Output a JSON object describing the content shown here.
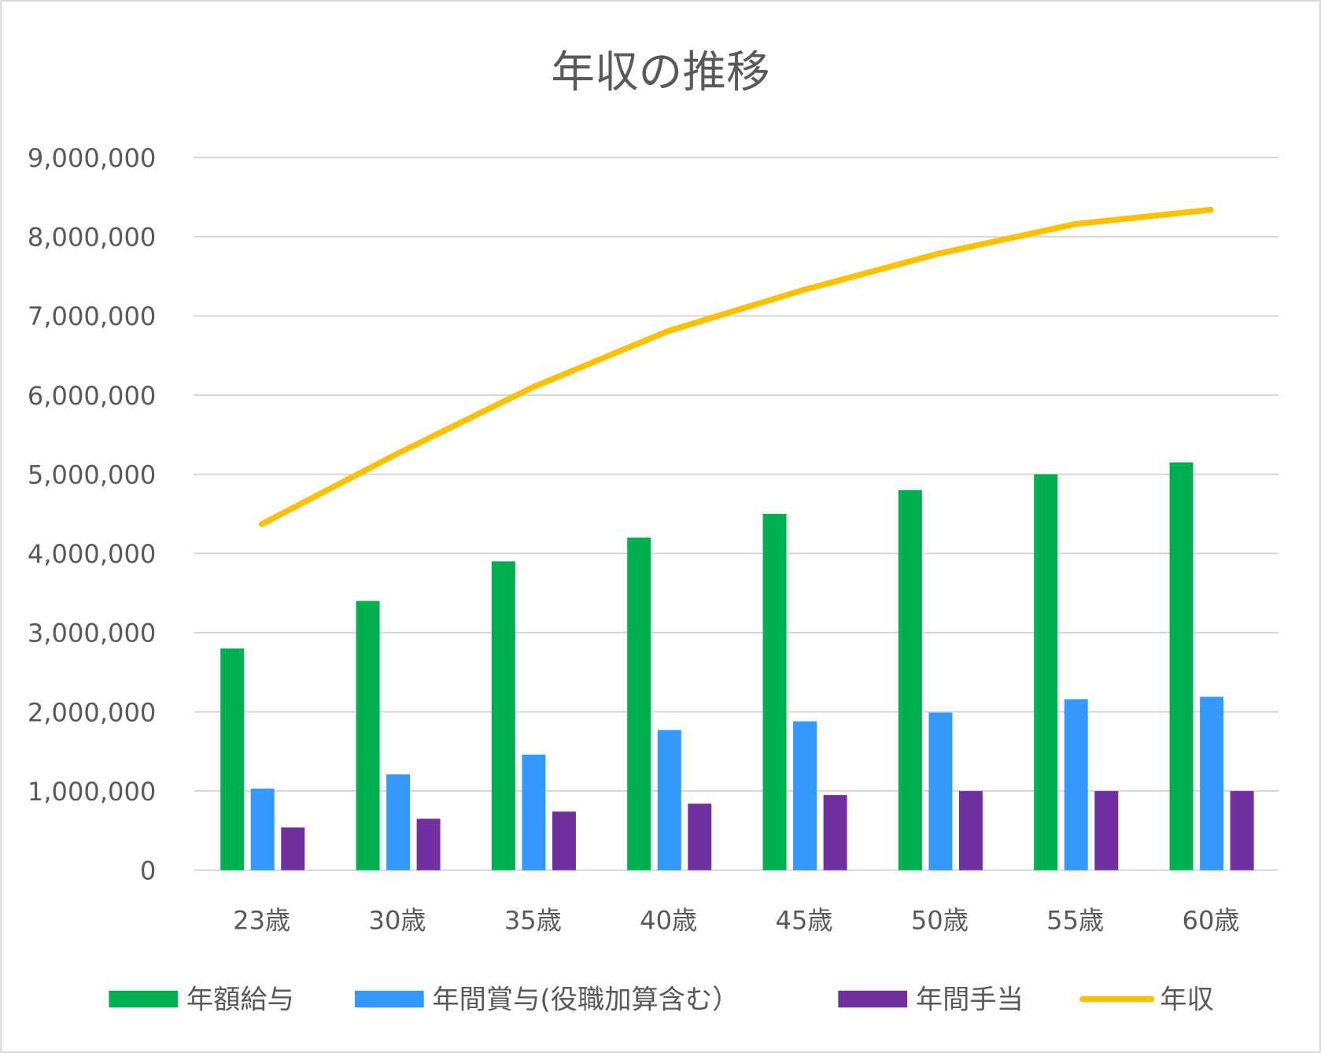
{
  "chart_data": {
    "type": "bar+line",
    "title": "年収の推移",
    "xlabel": "",
    "ylabel": "",
    "ylim": [
      0,
      9000000
    ],
    "yticks": [
      "0",
      "1,000,000",
      "2,000,000",
      "3,000,000",
      "4,000,000",
      "5,000,000",
      "6,000,000",
      "7,000,000",
      "8,000,000",
      "9,000,000"
    ],
    "ytick_values": [
      0,
      1000000,
      2000000,
      3000000,
      4000000,
      5000000,
      6000000,
      7000000,
      8000000,
      9000000
    ],
    "grid": true,
    "legend_position": "bottom",
    "categories": [
      "23歳",
      "30歳",
      "35歳",
      "40歳",
      "45歳",
      "50歳",
      "55歳",
      "60歳"
    ],
    "series": [
      {
        "name": "年額給与",
        "type": "bar",
        "color": "#00B050",
        "values": [
          2800000,
          3400000,
          3900000,
          4200000,
          4500000,
          4800000,
          5000000,
          5150000
        ]
      },
      {
        "name": "年間賞与(役職加算含む）",
        "type": "bar",
        "color": "#3399FF",
        "values": [
          1030000,
          1210000,
          1460000,
          1770000,
          1880000,
          1990000,
          2160000,
          2190000
        ]
      },
      {
        "name": "年間手当",
        "type": "bar",
        "color": "#7030A0",
        "values": [
          540000,
          650000,
          740000,
          840000,
          950000,
          1000000,
          1000000,
          1000000
        ]
      },
      {
        "name": "年収",
        "type": "line",
        "color": "#FFC000",
        "values": [
          4370000,
          5260000,
          6100000,
          6810000,
          7330000,
          7790000,
          8160000,
          8340000
        ]
      }
    ]
  }
}
